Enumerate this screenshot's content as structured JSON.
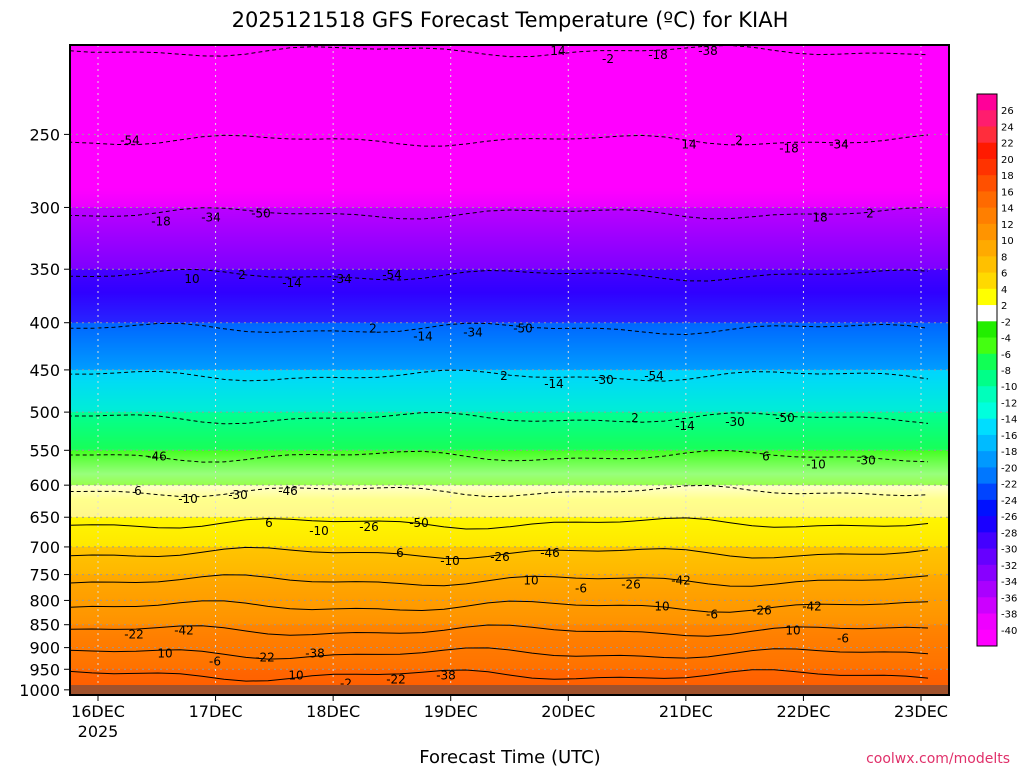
{
  "chart_data": {
    "type": "heatmap",
    "title": "2025121518 GFS Forecast Temperature (ºC) for KIAH",
    "xlabel": "Forecast Time (UTC)",
    "ylabel": "",
    "credit": "coolwx.com/modelts",
    "x_ticks": [
      "16DEC",
      "17DEC",
      "18DEC",
      "19DEC",
      "20DEC",
      "21DEC",
      "22DEC",
      "23DEC"
    ],
    "x_year": "2025",
    "y_ticks": [
      250,
      300,
      350,
      400,
      450,
      500,
      550,
      600,
      650,
      700,
      750,
      800,
      850,
      900,
      950,
      1000
    ],
    "ylim_hpa": [
      1013,
      200
    ],
    "surface_pressure_hpa": 1013,
    "colorbar_ticks": [
      26,
      24,
      22,
      20,
      18,
      16,
      14,
      12,
      10,
      8,
      6,
      4,
      2,
      -2,
      -4,
      -6,
      -8,
      -10,
      -12,
      -14,
      -16,
      -18,
      -20,
      -22,
      -24,
      -26,
      -28,
      -30,
      -32,
      -34,
      -36,
      -38,
      -40
    ],
    "colorbar_colors": [
      "#ff0099",
      "#ff1d6e",
      "#ff2d3c",
      "#ff1a00",
      "#ff3300",
      "#ff5000",
      "#ff6a00",
      "#ff7f00",
      "#ff9400",
      "#ffaa00",
      "#ffc000",
      "#ffd900",
      "#ffff00",
      "#ffffff",
      "#22ee00",
      "#44ff11",
      "#11ff55",
      "#00ff88",
      "#00ffbb",
      "#00ffdd",
      "#00ddff",
      "#00bbff",
      "#0099ff",
      "#0077ff",
      "#0044ff",
      "#0011ff",
      "#1a00ff",
      "#4400ff",
      "#6600ff",
      "#8800ff",
      "#aa00ff",
      "#cc00ff",
      "#ee00ff",
      "#ff00ff"
    ],
    "profile_sample": [
      {
        "p": 1000,
        "t": 14
      },
      {
        "p": 950,
        "t": 12
      },
      {
        "p": 900,
        "t": 11
      },
      {
        "p": 850,
        "t": 10
      },
      {
        "p": 800,
        "t": 9
      },
      {
        "p": 750,
        "t": 7
      },
      {
        "p": 700,
        "t": 5
      },
      {
        "p": 650,
        "t": 2
      },
      {
        "p": 600,
        "t": -3
      },
      {
        "p": 550,
        "t": -7
      },
      {
        "p": 500,
        "t": -13
      },
      {
        "p": 450,
        "t": -18
      },
      {
        "p": 400,
        "t": -25
      },
      {
        "p": 350,
        "t": -32
      },
      {
        "p": 300,
        "t": -40
      },
      {
        "p": 250,
        "t": -48
      },
      {
        "p": 200,
        "t": -54
      }
    ],
    "contour_labels": [
      "-54",
      "-50",
      "-54",
      "-50",
      "-54",
      "-50",
      "-46",
      "-46",
      "-50",
      "-46",
      "-42",
      "-42",
      "-42",
      "-38",
      "-38",
      "-38",
      "-38",
      "-34",
      "-34",
      "-34",
      "-34",
      "-30",
      "-30",
      "-30",
      "-30",
      "-26",
      "-26",
      "-26",
      "-26",
      "-22",
      "-22",
      "-22",
      "-18",
      "-18",
      "-18",
      "-18",
      "-14",
      "-14",
      "-14",
      "-14",
      "-10",
      "-10",
      "-10",
      "-10",
      "-6",
      "-6",
      "-6",
      "-6",
      "-2",
      "-2",
      "-2",
      "2",
      "2",
      "2",
      "2",
      "2",
      "2",
      "6",
      "6",
      "6",
      "6",
      "10",
      "10",
      "10",
      "10",
      "10",
      "14",
      "14",
      "14",
      "18",
      "10"
    ]
  }
}
